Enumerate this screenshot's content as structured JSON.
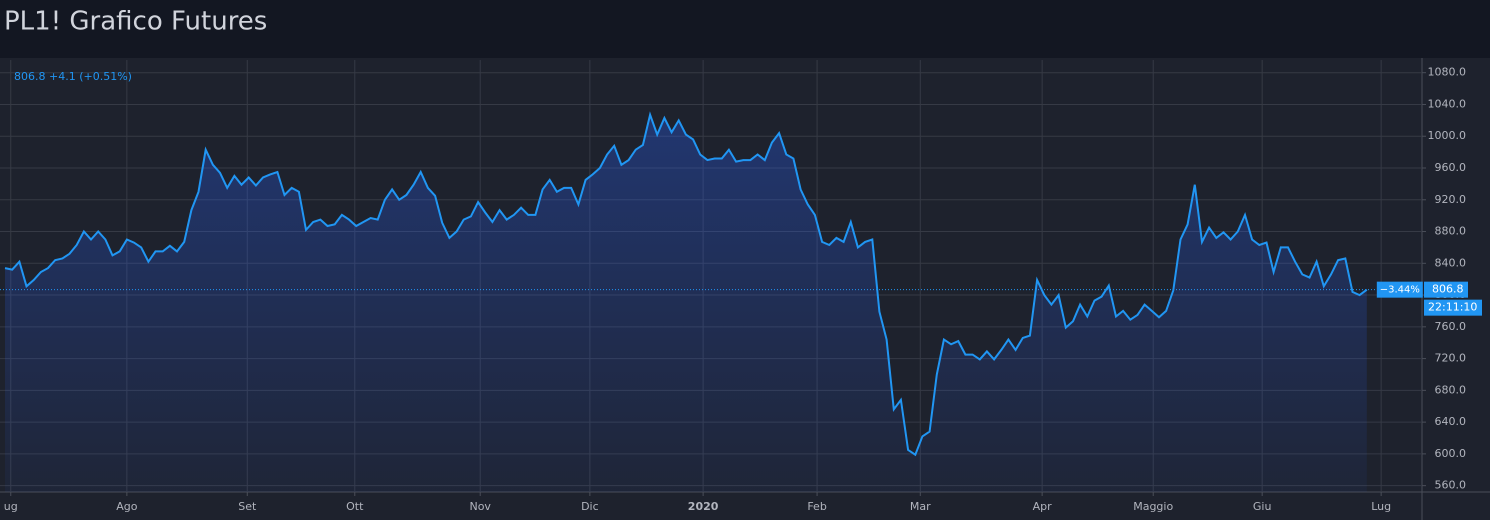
{
  "chart_data": {
    "type": "area",
    "title": "PL1! Grafico Futures",
    "header": "806.8 +4.1 (+0.51%)",
    "color": "#2196f3",
    "values": [
      834,
      832,
      842,
      811,
      819,
      829,
      834,
      844,
      846,
      852,
      863,
      880,
      870,
      880,
      870,
      850,
      855,
      870,
      866,
      860,
      842,
      855,
      855,
      862,
      855,
      867,
      907,
      930,
      983,
      964,
      954,
      935,
      950,
      939,
      948,
      938,
      948,
      952,
      955,
      926,
      935,
      930,
      882,
      892,
      895,
      887,
      889,
      901,
      895,
      887,
      892,
      897,
      895,
      920,
      933,
      920,
      926,
      939,
      955,
      935,
      925,
      891,
      872,
      880,
      895,
      899,
      917,
      904,
      892,
      907,
      895,
      901,
      910,
      901,
      901,
      933,
      945,
      930,
      935,
      935,
      914,
      945,
      952,
      960,
      977,
      988,
      964,
      970,
      983,
      989,
      1027,
      1002,
      1023,
      1005,
      1020,
      1002,
      996,
      977,
      970,
      972,
      972,
      983,
      968,
      970,
      970,
      977,
      970,
      992,
      1004,
      977,
      972,
      933,
      914,
      901,
      867,
      863,
      872,
      867,
      892,
      860,
      867,
      870,
      779,
      744,
      656,
      668,
      605,
      599,
      622,
      628,
      700,
      744,
      738,
      742,
      725,
      725,
      719,
      729,
      719,
      731,
      744,
      731,
      746,
      749,
      819,
      800,
      788,
      800,
      759,
      767,
      788,
      773,
      793,
      798,
      812,
      773,
      780,
      769,
      775,
      788,
      780,
      772,
      780,
      806,
      870,
      889,
      939,
      867,
      885,
      872,
      879,
      870,
      880,
      901,
      870,
      863,
      866,
      829,
      860,
      860,
      842,
      826,
      822,
      842,
      811,
      826,
      844,
      846,
      804,
      800,
      806.8
    ],
    "last_price_label": "806.8",
    "change_label": "−3.44%",
    "countdown": "22:11:10",
    "xlim": [
      -0.7,
      197.7
    ],
    "xticks": [
      {
        "value": 0.8,
        "label": "ug"
      },
      {
        "value": 17,
        "label": "Ago"
      },
      {
        "value": 33.8,
        "label": "Set"
      },
      {
        "value": 48.8,
        "label": "Ott"
      },
      {
        "value": 66.3,
        "label": "Nov"
      },
      {
        "value": 81.6,
        "label": "Dic"
      },
      {
        "value": 97.4,
        "label": "2020"
      },
      {
        "value": 113.3,
        "label": "Feb"
      },
      {
        "value": 127.7,
        "label": "Mar"
      },
      {
        "value": 144.7,
        "label": "Apr"
      },
      {
        "value": 160.2,
        "label": "Maggio"
      },
      {
        "value": 175.4,
        "label": "Giu"
      },
      {
        "value": 192,
        "label": "Lug"
      }
    ],
    "ylim": [
      552,
      1096
    ],
    "yticks": [
      {
        "value": 560,
        "label": "560.0"
      },
      {
        "value": 600,
        "label": "600.0"
      },
      {
        "value": 640,
        "label": "640.0"
      },
      {
        "value": 680,
        "label": "680.0"
      },
      {
        "value": 720,
        "label": "720.0"
      },
      {
        "value": 760,
        "label": "760.0"
      },
      {
        "value": 800,
        "label": "800.0"
      },
      {
        "value": 840,
        "label": "840.0"
      },
      {
        "value": 880,
        "label": "880.0"
      },
      {
        "value": 920,
        "label": "920.0"
      },
      {
        "value": 960,
        "label": "960.0"
      },
      {
        "value": 1000,
        "label": "1000.0"
      },
      {
        "value": 1040,
        "label": "1040.0"
      },
      {
        "value": 1080,
        "label": "1080.0"
      }
    ],
    "grid": true
  }
}
